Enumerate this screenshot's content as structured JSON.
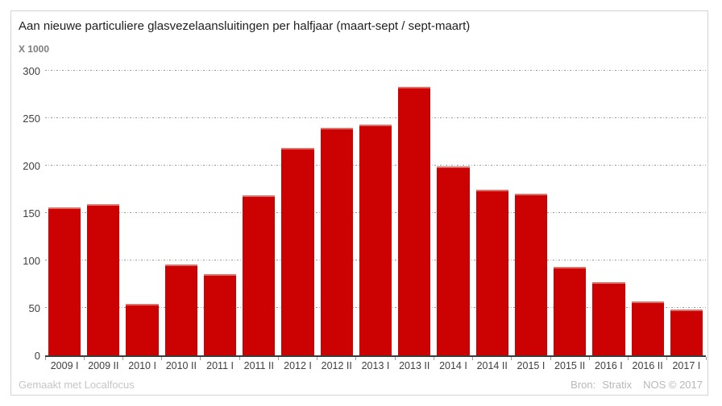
{
  "header": {
    "title": "Aan nieuwe particuliere glasvezelaansluitingen per halfjaar (maart-sept / sept-maart)",
    "unit": "X 1000"
  },
  "footer": {
    "credit": "Gemaakt met Localfocus",
    "source_label": "Bron:",
    "source_value": "Stratix",
    "copyright": "NOS © 2017"
  },
  "colors": {
    "bar": "#cc0202",
    "bar_cap": "#df7068",
    "grid": "#979797",
    "axis": "#3a3a3a",
    "title_text": "#1f1f1f",
    "tick_text": "#404040",
    "muted_text": "#bdbdbd",
    "frame_border": "#d4d4d4"
  },
  "chart_data": {
    "type": "bar",
    "title": "Aan nieuwe particuliere glasvezelaansluitingen per halfjaar (maart-sept / sept-maart)",
    "unit_label": "X 1000",
    "categories": [
      "2009 I",
      "2009 II",
      "2010 I",
      "2010 II",
      "2011 I",
      "2011 II",
      "2012 I",
      "2012 II",
      "2013 I",
      "2013 II",
      "2014 I",
      "2014 II",
      "2015 I",
      "2015 II",
      "2016 I",
      "2016 II",
      "2017 I"
    ],
    "values": [
      156,
      159,
      54,
      96,
      86,
      169,
      219,
      240,
      243,
      283,
      199,
      175,
      170,
      93,
      77,
      57,
      48
    ],
    "xlabel": "",
    "ylabel": "X 1000",
    "ylim": [
      0,
      300
    ],
    "yticks": [
      0,
      50,
      100,
      150,
      200,
      250,
      300
    ],
    "grid": "horizontal-dotted",
    "legend": "none",
    "bar_color": "#cc0202"
  }
}
